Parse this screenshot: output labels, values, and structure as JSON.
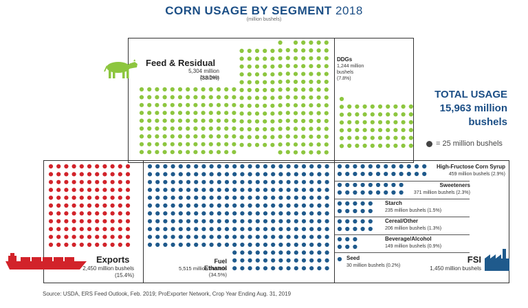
{
  "title": {
    "main": "CORN USAGE BY SEGMENT",
    "year": "2018",
    "unit": "(million bushels)"
  },
  "total": {
    "line1": "TOTAL USAGE",
    "line2": "15,963 million",
    "line3": "bushels"
  },
  "legend": {
    "text": "= 25 million bushels"
  },
  "source": "Source: USDA, ERS Feed Outlook, Feb. 2019; ProExporter Network, Crop Year Ending Aug. 31, 2019",
  "feed": {
    "name": "Feed & Residual",
    "value": "5,304 million bushels",
    "pct": "(33.2%)"
  },
  "ddgs": {
    "name": "DDGs",
    "value1": "1,244 million",
    "value2": "bushels",
    "pct": "(7.8%)"
  },
  "exports": {
    "name": "Exports",
    "value": "2,450 million bushels",
    "pct": "(15.4%)"
  },
  "ethanol": {
    "name": "Fuel Ethanol",
    "value": "5,515 million bushels",
    "pct": "(34.5%)"
  },
  "fsi": {
    "name": "FSI",
    "value": "1,450 million bushels"
  },
  "fsi_items": [
    {
      "name": "High-Fructose Corn Syrup",
      "value": "459 million bushels (2.9%)"
    },
    {
      "name": "Sweeteners",
      "value": "371 million bushels (2.3%)"
    },
    {
      "name": "Starch",
      "value": "235 million bushels (1.5%)"
    },
    {
      "name": "Cereal/Other",
      "value": "206 million bushels (1.3%)"
    },
    {
      "name": "Beverage/Alcohol",
      "value": "149 million bushels (0.9%)"
    },
    {
      "name": "Seed",
      "value": "30 million bushels (0.2%)"
    }
  ],
  "colors": {
    "feed": "#8dc63f",
    "exports": "#d2232a",
    "ethanol": "#1f5a8c",
    "title": "#1c4f86"
  },
  "icons": [
    "cow-icon",
    "ship-icon",
    "factory-icon"
  ]
}
